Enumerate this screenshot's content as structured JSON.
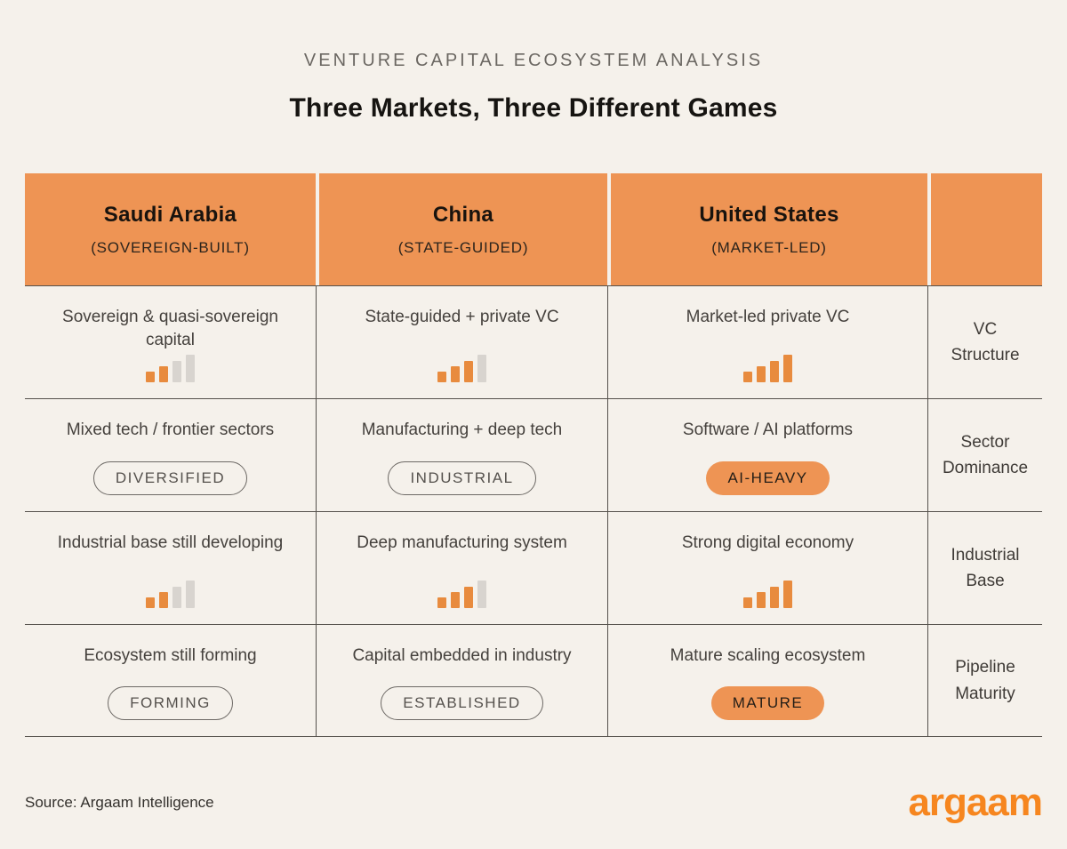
{
  "header": {
    "kicker": "VENTURE CAPITAL ECOSYSTEM ANALYSIS",
    "title": "Three Markets, Three Different Games"
  },
  "colors": {
    "accent_orange": "#ee9454",
    "bar_orange": "#e88b3e",
    "bar_gray": "#d8d4cf",
    "background": "#f5f1eb",
    "logo_orange": "#f6861f"
  },
  "chart_data": {
    "type": "table",
    "title": "Three Markets, Three Different Games",
    "subtitle": "VENTURE CAPITAL ECOSYSTEM ANALYSIS",
    "columns": [
      "Saudi Arabia (SOVEREIGN-BUILT)",
      "China (STATE-GUIDED)",
      "United States (MARKET-LED)"
    ],
    "row_labels": [
      "VC Structure",
      "Sector Dominance",
      "Industrial Base",
      "Pipeline Maturity"
    ],
    "bar_scale_max": 4,
    "rows": [
      {
        "label": "VC Structure",
        "values": [
          2,
          3,
          4
        ]
      },
      {
        "label": "Sector Dominance",
        "values": [
          "DIVERSIFIED",
          "INDUSTRIAL",
          "AI-HEAVY"
        ]
      },
      {
        "label": "Industrial Base",
        "values": [
          2,
          3,
          4
        ]
      },
      {
        "label": "Pipeline Maturity",
        "values": [
          "FORMING",
          "ESTABLISHED",
          "MATURE"
        ]
      }
    ]
  },
  "table": {
    "columns": [
      {
        "name": "Saudi Arabia",
        "subtitle": "(SOVEREIGN-BUILT)"
      },
      {
        "name": "China",
        "subtitle": "(STATE-GUIDED)"
      },
      {
        "name": "United States",
        "subtitle": "(MARKET-LED)"
      }
    ],
    "rows": [
      {
        "label": "VC Structure",
        "cells": [
          {
            "text": "Sovereign & quasi-sovereign capital",
            "indicator": {
              "type": "bars",
              "filled": 2,
              "total": 4
            }
          },
          {
            "text": "State-guided + private VC",
            "indicator": {
              "type": "bars",
              "filled": 3,
              "total": 4
            }
          },
          {
            "text": "Market-led private VC",
            "indicator": {
              "type": "bars",
              "filled": 4,
              "total": 4
            }
          }
        ]
      },
      {
        "label": "Sector Dominance",
        "cells": [
          {
            "text": "Mixed tech / frontier sectors",
            "indicator": {
              "type": "badge",
              "style": "outline",
              "label": "DIVERSIFIED"
            }
          },
          {
            "text": "Manufacturing + deep tech",
            "indicator": {
              "type": "badge",
              "style": "outline",
              "label": "INDUSTRIAL"
            }
          },
          {
            "text": "Software / AI platforms",
            "indicator": {
              "type": "badge",
              "style": "filled",
              "label": "AI-HEAVY"
            }
          }
        ]
      },
      {
        "label": "Industrial Base",
        "cells": [
          {
            "text": "Industrial base still developing",
            "indicator": {
              "type": "bars",
              "filled": 2,
              "total": 4
            }
          },
          {
            "text": "Deep manufacturing system",
            "indicator": {
              "type": "bars",
              "filled": 3,
              "total": 4
            }
          },
          {
            "text": "Strong digital economy",
            "indicator": {
              "type": "bars",
              "filled": 4,
              "total": 4
            }
          }
        ]
      },
      {
        "label": "Pipeline Maturity",
        "cells": [
          {
            "text": "Ecosystem still forming",
            "indicator": {
              "type": "badge",
              "style": "outline",
              "label": "FORMING"
            }
          },
          {
            "text": "Capital embedded in industry",
            "indicator": {
              "type": "badge",
              "style": "outline",
              "label": "ESTABLISHED"
            }
          },
          {
            "text": "Mature scaling ecosystem",
            "indicator": {
              "type": "badge",
              "style": "filled",
              "label": "MATURE"
            }
          }
        ]
      }
    ]
  },
  "footer": {
    "source": "Source: Argaam Intelligence",
    "logo_text": "argaam"
  }
}
